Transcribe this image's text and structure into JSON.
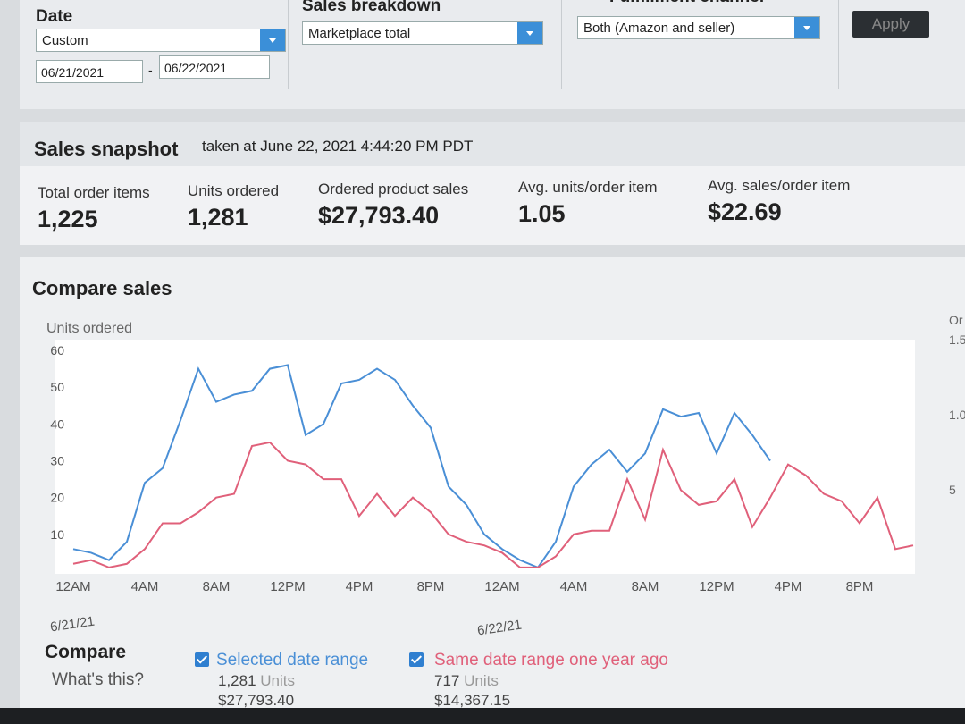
{
  "filters": {
    "date_label": "Date",
    "date_preset": "Custom",
    "start_date": "06/21/2021",
    "date_separator": "-",
    "end_date": "06/22/2021",
    "breakdown_label": "Sales breakdown",
    "breakdown_value": "Marketplace total",
    "channel_label": "Fulfillment channel",
    "channel_value": "Both (Amazon and seller)",
    "apply": "Apply"
  },
  "snapshot": {
    "title": "Sales snapshot",
    "subtitle": "taken at June 22, 2021 4:44:20 PM PDT",
    "metrics": [
      {
        "label": "Total order items",
        "value": "1,225"
      },
      {
        "label": "Units ordered",
        "value": "1,281"
      },
      {
        "label": "Ordered product sales",
        "value": "$27,793.40"
      },
      {
        "label": "Avg. units/order item",
        "value": "1.05"
      },
      {
        "label": "Avg. sales/order item",
        "value": "$22.69"
      }
    ]
  },
  "compare": {
    "title": "Compare sales",
    "compare_label": "Compare",
    "help_link": "What's this?",
    "legend_stats": [
      {
        "units": "1,281",
        "units_word": "Units",
        "sales": "$27,793.40"
      },
      {
        "units": "717",
        "units_word": "Units",
        "sales": "$14,367.15"
      }
    ],
    "right_axis_fragments": [
      "Or",
      "1.5",
      "1.0",
      "5"
    ]
  },
  "chart_data": {
    "type": "line",
    "y_label": "Units ordered",
    "date_labels": [
      "6/21/21",
      "6/22/21"
    ],
    "categories": [
      "12AM",
      null,
      null,
      null,
      "4AM",
      null,
      null,
      null,
      "8AM",
      null,
      null,
      null,
      "12PM",
      null,
      null,
      null,
      "4PM",
      null,
      null,
      null,
      "8PM",
      null,
      null,
      null,
      "12AM",
      null,
      null,
      null,
      "4AM",
      null,
      null,
      null,
      "8AM",
      null,
      null,
      null,
      "12PM",
      null,
      null,
      null,
      "4PM",
      null,
      null,
      null,
      "8PM",
      null,
      null,
      null
    ],
    "ylim": [
      0,
      60
    ],
    "yticks": [
      10,
      20,
      30,
      40,
      50,
      60
    ],
    "grid": false,
    "series": [
      {
        "name": "Selected date range",
        "color": "#4a8fd6",
        "values": [
          6,
          5,
          3,
          8,
          24,
          28,
          41,
          55,
          46,
          48,
          49,
          55,
          56,
          37,
          40,
          51,
          52,
          55,
          52,
          45,
          39,
          23,
          18,
          10,
          6,
          3,
          1,
          8,
          23,
          29,
          33,
          27,
          32,
          44,
          42,
          43,
          32,
          43,
          37,
          30,
          null,
          null,
          null,
          null,
          null,
          null,
          null,
          null
        ]
      },
      {
        "name": "Same date range one year ago",
        "color": "#e0607a",
        "values": [
          2,
          3,
          1,
          2,
          6,
          13,
          13,
          16,
          20,
          21,
          34,
          35,
          30,
          29,
          25,
          25,
          15,
          21,
          15,
          20,
          16,
          10,
          8,
          7,
          5,
          1,
          1,
          4,
          10,
          11,
          11,
          25,
          14,
          33,
          22,
          18,
          19,
          25,
          12,
          20,
          29,
          26,
          21,
          19,
          13,
          20,
          6,
          7
        ]
      }
    ]
  }
}
